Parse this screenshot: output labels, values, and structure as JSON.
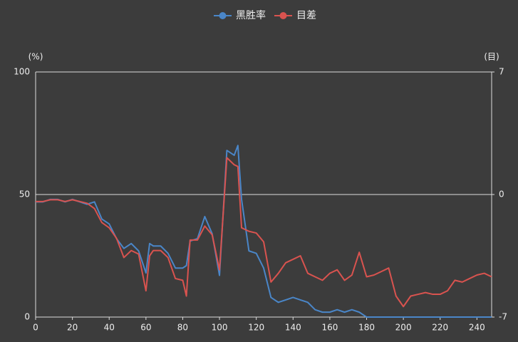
{
  "chart_data": {
    "type": "line",
    "x": [
      0,
      4,
      8,
      12,
      16,
      20,
      24,
      28,
      32,
      36,
      40,
      44,
      48,
      52,
      56,
      60,
      62,
      64,
      68,
      72,
      76,
      80,
      82,
      84,
      88,
      92,
      96,
      100,
      104,
      108,
      110,
      112,
      116,
      120,
      124,
      128,
      132,
      136,
      140,
      144,
      148,
      152,
      156,
      160,
      164,
      168,
      172,
      176,
      180,
      184,
      188,
      192,
      196,
      200,
      204,
      208,
      212,
      216,
      220,
      224,
      228,
      232,
      236,
      240,
      244,
      248
    ],
    "series": [
      {
        "name": "黑胜率",
        "color": "#4a86c8",
        "values": [
          47,
          47,
          48,
          48,
          47,
          48,
          47,
          46,
          47,
          40,
          38,
          32,
          28,
          30,
          27,
          18,
          30,
          29,
          29,
          26,
          20,
          20,
          21,
          31,
          32,
          41,
          34,
          17,
          68,
          66,
          70,
          48,
          27,
          26,
          20,
          8,
          6,
          7,
          8,
          7,
          6,
          3,
          2,
          2,
          3,
          2,
          3,
          2,
          0,
          0,
          0,
          0,
          0,
          0,
          0,
          0,
          0,
          0,
          0,
          0,
          0,
          0,
          0,
          0,
          0,
          0
        ]
      },
      {
        "name": "目差",
        "color": "#d9534f",
        "axis": "y2",
        "values": [
          -0.4,
          -0.4,
          -0.3,
          -0.3,
          -0.4,
          -0.3,
          -0.4,
          -0.5,
          -0.8,
          -1.6,
          -1.9,
          -2.5,
          -3.6,
          -3.2,
          -3.4,
          -5.5,
          -3.5,
          -3.2,
          -3.2,
          -3.6,
          -4.8,
          -4.9,
          -5.8,
          -2.6,
          -2.6,
          -1.8,
          -2.3,
          -4.3,
          2.1,
          1.7,
          1.6,
          -1.9,
          -2.1,
          -2.2,
          -2.7,
          -5,
          -4.5,
          -3.9,
          -3.7,
          -3.5,
          -4.5,
          -4.7,
          -4.9,
          -4.5,
          -4.3,
          -4.9,
          -4.6,
          -3.3,
          -4.7,
          -4.6,
          -4.4,
          -4.2,
          -5.8,
          -6.4,
          -5.8,
          -5.7,
          -5.6,
          -5.7,
          -5.7,
          -5.5,
          -4.9,
          -5.0,
          -4.8,
          -4.6,
          -4.5,
          -4.7
        ]
      }
    ],
    "y_label": "(%)",
    "y2_label": "(目)",
    "xlim": [
      0,
      248
    ],
    "xticks": [
      0,
      20,
      40,
      60,
      80,
      100,
      120,
      140,
      160,
      180,
      200,
      220,
      240
    ],
    "ylim": [
      0,
      100
    ],
    "yticks": [
      0,
      50,
      100
    ],
    "y2lim": [
      -7,
      7
    ],
    "y2ticks": [
      -7,
      0,
      7
    ],
    "grid": true
  }
}
